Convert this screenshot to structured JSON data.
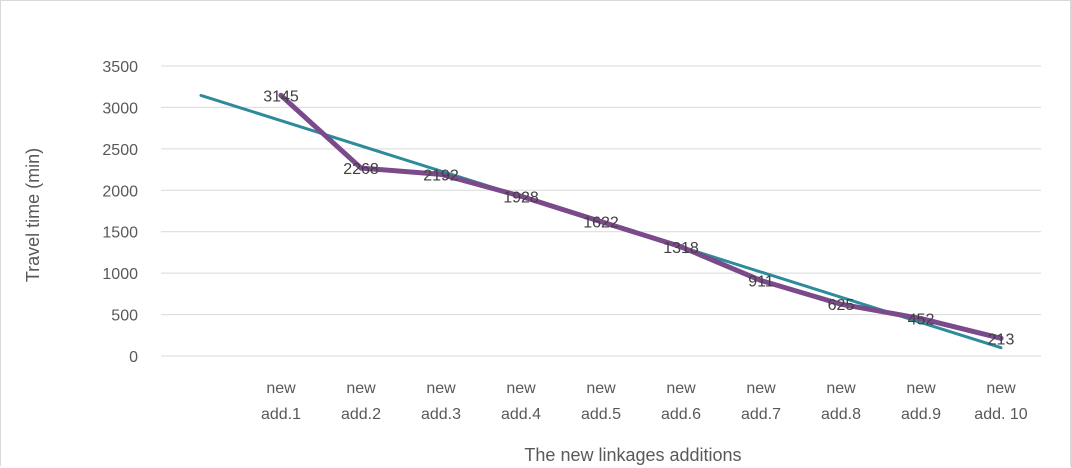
{
  "chart_data": {
    "type": "line",
    "title": "",
    "xlabel": "The new linkages additions",
    "ylabel": "Travel time (min)",
    "categories": [
      [
        "new",
        "add.1"
      ],
      [
        "new",
        "add.2"
      ],
      [
        "new",
        "add.3"
      ],
      [
        "new",
        "add.4"
      ],
      [
        "new",
        "add.5"
      ],
      [
        "new",
        "add.6"
      ],
      [
        "new",
        "add.7"
      ],
      [
        "new",
        "add.8"
      ],
      [
        "new",
        "add.9"
      ],
      [
        "new",
        "add. 10"
      ]
    ],
    "series": [
      {
        "values": [
          3145,
          2268,
          2192,
          1928,
          1622,
          1318,
          911,
          625,
          452,
          213
        ],
        "color": "#7a4a8a",
        "data_labels": true
      }
    ],
    "trendline": {
      "type": "linear",
      "color": "#2e8b9a",
      "start": 3145,
      "end": 100
    },
    "yticks": [
      0,
      500,
      1000,
      1500,
      2000,
      2500,
      3000,
      3500
    ],
    "ylim": [
      0,
      3500
    ],
    "grid": true,
    "legend": "none"
  }
}
